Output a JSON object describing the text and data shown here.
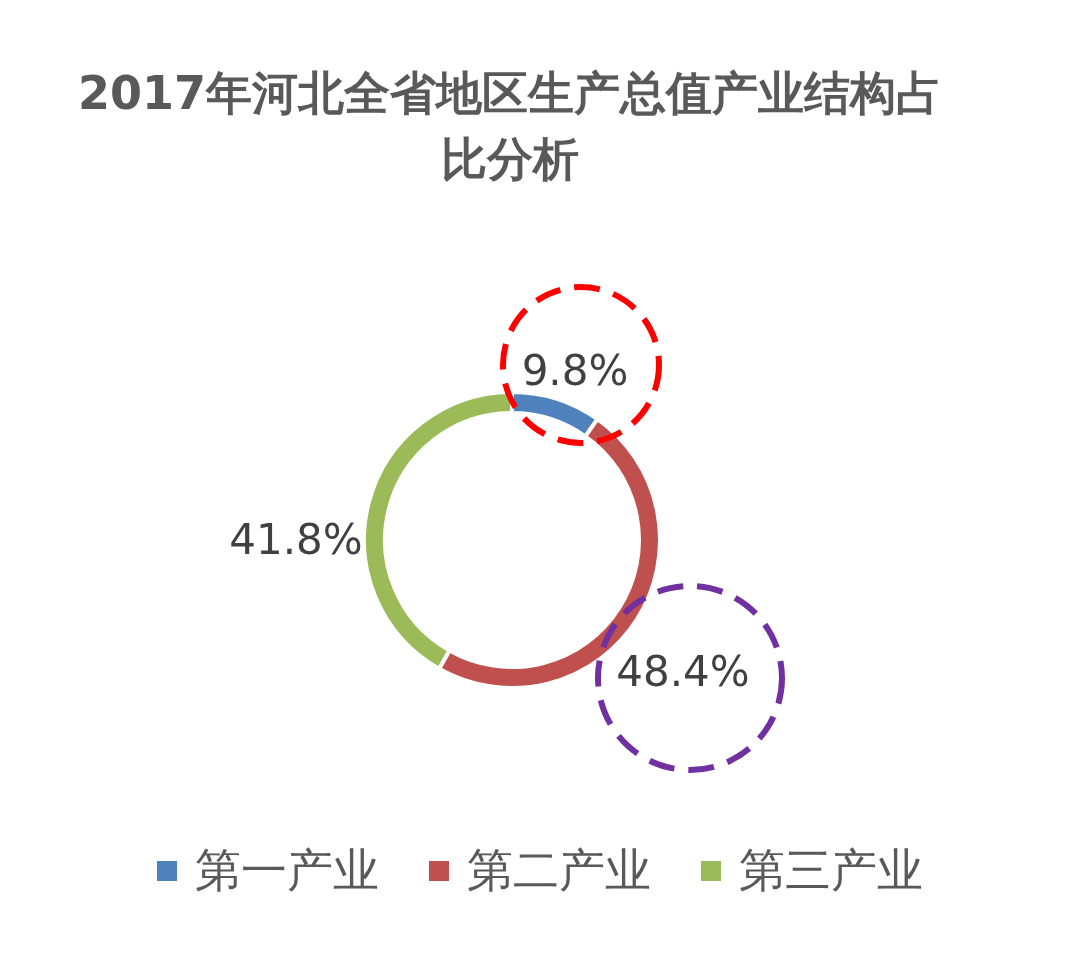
{
  "chart_data": {
    "type": "donut",
    "title": "2017年河北全省地区生产总值产业结构占比分析",
    "categories": [
      "第一产业",
      "第二产业",
      "第三产业"
    ],
    "values": [
      9.8,
      48.4,
      41.8
    ],
    "colors": [
      "#4f81bd",
      "#c0504d",
      "#9bbb59"
    ],
    "value_labels": [
      "9.8%",
      "48.4%",
      "41.8%"
    ],
    "legend": "bottom"
  }
}
